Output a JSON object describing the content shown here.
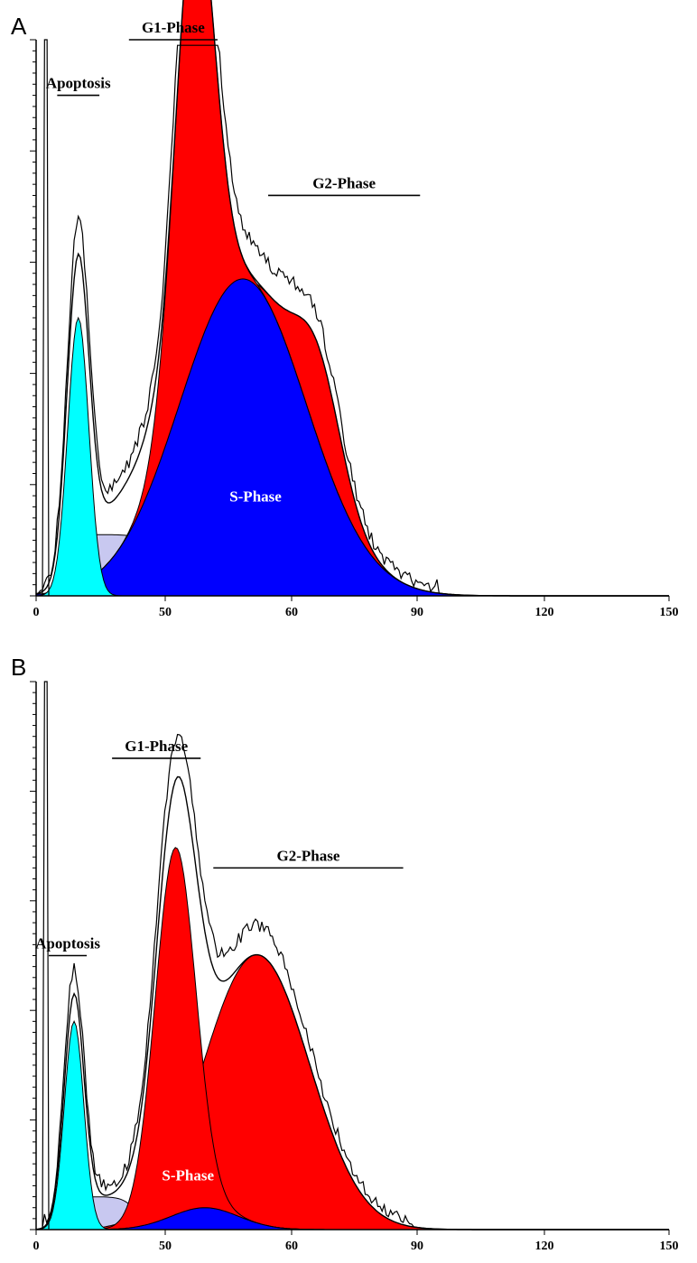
{
  "figure": {
    "colors": {
      "apoptosis": "#00ffff",
      "debris": "#c8c8f0",
      "g1": "#ff0000",
      "s_phase": "#0000ff",
      "g2": "#ff0000",
      "trace": "#000000"
    }
  },
  "chart_data": [
    {
      "panel": "A",
      "type": "area",
      "xlim": [
        0,
        150
      ],
      "x_tick_labels": [
        "0",
        "50",
        "60",
        "90",
        "120",
        "150"
      ],
      "y_tick_count": 50,
      "regions": [
        {
          "label": "Apoptosis",
          "x_start": 5,
          "x_end": 15
        },
        {
          "label": "G1-Phase",
          "x_start": 22,
          "x_end": 43
        },
        {
          "label": "G2-Phase",
          "x_start": 55,
          "x_end": 91
        }
      ],
      "s_phase_label": "S-Phase",
      "fits": {
        "apoptosis": {
          "center": 10,
          "width": 2.5,
          "height": 0.5
        },
        "debris": {
          "level": 0.11
        },
        "g1": {
          "center": 37.5,
          "width": 4.6,
          "height": 0.83
        },
        "s_phase": {
          "center": 49,
          "width": 15,
          "height": 0.57
        },
        "g2": {
          "center": 67,
          "width": 5.5,
          "height": 0.17
        }
      },
      "raw_peak_height": 0.97
    },
    {
      "panel": "B",
      "type": "area",
      "xlim": [
        0,
        150
      ],
      "x_tick_labels": [
        "0",
        "50",
        "60",
        "90",
        "120",
        "150"
      ],
      "y_tick_count": 50,
      "regions": [
        {
          "label": "Apoptosis",
          "x_start": 3,
          "x_end": 12
        },
        {
          "label": "G1-Phase",
          "x_start": 18,
          "x_end": 39
        },
        {
          "label": "G2-Phase",
          "x_start": 42,
          "x_end": 87
        }
      ],
      "s_phase_label": "S-Phase",
      "fits": {
        "apoptosis": {
          "center": 9,
          "width": 2.3,
          "height": 0.38
        },
        "debris": {
          "level": 0.06
        },
        "g1": {
          "center": 33,
          "width": 4.8,
          "height": 0.67
        },
        "s_phase": {
          "center": 40,
          "width": 8,
          "height": 0.04
        },
        "g2": {
          "center": 53,
          "width": 12,
          "height": 0.49
        }
      },
      "raw_peak_height": 0.94
    }
  ]
}
